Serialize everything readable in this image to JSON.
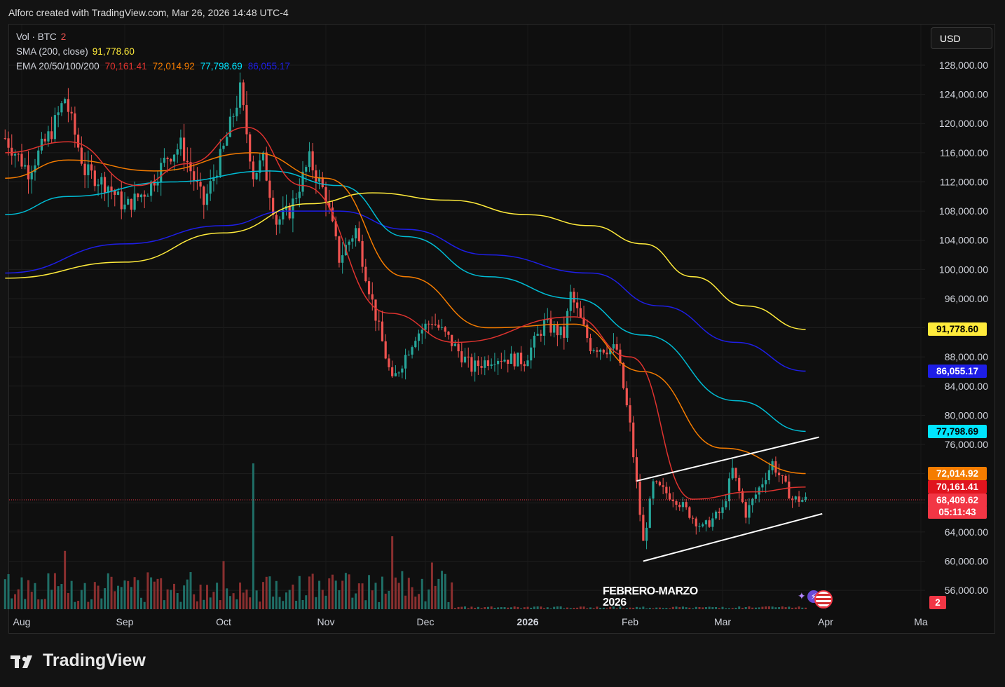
{
  "header": {
    "title": "Alforc created with TradingView.com, Mar 26, 2026 14:48 UTC-4"
  },
  "legend": {
    "vol_label": "Vol · BTC",
    "vol_value": "2",
    "sma_label": "SMA (200, close)",
    "sma_value": "91,778.60",
    "ema_label": "EMA 20/50/100/200",
    "ema20_value": "70,161.41",
    "ema50_value": "72,014.92",
    "ema100_value": "77,798.69",
    "ema200_value": "86,055.17"
  },
  "currency_button": "USD",
  "annotation": {
    "line1": "FEBRERO-MARZO",
    "line2": "2026"
  },
  "brand": "TradingView",
  "colors": {
    "up": "#26a69a",
    "down": "#ef5350",
    "ema20": "#e0332f",
    "ema50": "#f57c00",
    "ema100": "#00bcd4",
    "ema200": "#1e1ee6",
    "sma200": "#ffeb3b",
    "channel": "#ffffff"
  },
  "price_tags": [
    {
      "label": "91,778.60",
      "value": 91778.6,
      "bg": "#ffeb3b",
      "fg": "#000000"
    },
    {
      "label": "86,055.17",
      "value": 86055.17,
      "bg": "#1e1ee6",
      "fg": "#ffffff"
    },
    {
      "label": "77,798.69",
      "value": 77798.69,
      "bg": "#00e5ff",
      "fg": "#000000"
    },
    {
      "label": "72,014.92",
      "value": 72014.92,
      "bg": "#f57c00",
      "fg": "#ffffff"
    },
    {
      "label": "70,161.41",
      "value": 70161.41,
      "bg": "#e0141e",
      "fg": "#ffffff"
    },
    {
      "label": "68,409.62",
      "value": 68409.62,
      "bg": "#f23645",
      "fg": "#ffffff"
    },
    {
      "label": "05:11:43",
      "value": 66700,
      "bg": "#f23645",
      "fg": "#ffffff"
    }
  ],
  "volume_tag": {
    "label": "2",
    "bg": "#f23645",
    "fg": "#ffffff"
  },
  "chart_data": {
    "type": "candlestick",
    "symbol": "BTC",
    "currency": "USD",
    "y_ticks": [
      56000,
      60000,
      64000,
      68000,
      72000,
      76000,
      80000,
      84000,
      88000,
      92000,
      96000,
      100000,
      104000,
      108000,
      112000,
      116000,
      120000,
      124000,
      128000
    ],
    "y_tick_labels": [
      "56,000.00",
      "60,000.00",
      "64,000.00",
      "",
      "",
      "76,000.00",
      "80,000.00",
      "84,000.00",
      "88,000.00",
      "",
      "96,000.00",
      "100,000.00",
      "104,000.00",
      "108,000.00",
      "112,000.00",
      "116,000.00",
      "120,000.00",
      "124,000.00",
      "128,000.00"
    ],
    "x_ticks": [
      {
        "label": "Aug",
        "date": "2025-08-01"
      },
      {
        "label": "Sep",
        "date": "2025-09-01"
      },
      {
        "label": "Oct",
        "date": "2025-10-01"
      },
      {
        "label": "Nov",
        "date": "2025-11-01"
      },
      {
        "label": "Dec",
        "date": "2025-12-01"
      },
      {
        "label": "2026",
        "date": "2026-01-01"
      },
      {
        "label": "Feb",
        "date": "2026-02-01"
      },
      {
        "label": "Mar",
        "date": "2026-03-01"
      },
      {
        "label": "Apr",
        "date": "2026-04-01"
      },
      {
        "label": "Ma",
        "date": "2026-05-01"
      }
    ],
    "close_series": [
      {
        "date": "2025-07-27",
        "close": 118000
      },
      {
        "date": "2025-08-03",
        "close": 113500
      },
      {
        "date": "2025-08-10",
        "close": 119000
      },
      {
        "date": "2025-08-14",
        "close": 123500
      },
      {
        "date": "2025-08-20",
        "close": 113500
      },
      {
        "date": "2025-08-27",
        "close": 111500
      },
      {
        "date": "2025-09-01",
        "close": 108500
      },
      {
        "date": "2025-09-08",
        "close": 111000
      },
      {
        "date": "2025-09-14",
        "close": 115500
      },
      {
        "date": "2025-09-18",
        "close": 117000
      },
      {
        "date": "2025-09-25",
        "close": 109000
      },
      {
        "date": "2025-10-01",
        "close": 116500
      },
      {
        "date": "2025-10-06",
        "close": 124500
      },
      {
        "date": "2025-10-10",
        "close": 113000
      },
      {
        "date": "2025-10-13",
        "close": 115000
      },
      {
        "date": "2025-10-17",
        "close": 106500
      },
      {
        "date": "2025-10-21",
        "close": 108000
      },
      {
        "date": "2025-10-27",
        "close": 115000
      },
      {
        "date": "2025-11-01",
        "close": 110000
      },
      {
        "date": "2025-11-05",
        "close": 101500
      },
      {
        "date": "2025-11-10",
        "close": 105500
      },
      {
        "date": "2025-11-15",
        "close": 95500
      },
      {
        "date": "2025-11-21",
        "close": 84500
      },
      {
        "date": "2025-11-28",
        "close": 91000
      },
      {
        "date": "2025-12-03",
        "close": 93000
      },
      {
        "date": "2025-12-08",
        "close": 90500
      },
      {
        "date": "2025-12-15",
        "close": 86500
      },
      {
        "date": "2025-12-22",
        "close": 88000
      },
      {
        "date": "2025-12-31",
        "close": 87500
      },
      {
        "date": "2026-01-06",
        "close": 92500
      },
      {
        "date": "2026-01-12",
        "close": 91000
      },
      {
        "date": "2026-01-14",
        "close": 96500
      },
      {
        "date": "2026-01-20",
        "close": 89500
      },
      {
        "date": "2026-01-28",
        "close": 89000
      },
      {
        "date": "2026-02-01",
        "close": 78500
      },
      {
        "date": "2026-02-05",
        "close": 62500
      },
      {
        "date": "2026-02-08",
        "close": 70500
      },
      {
        "date": "2026-02-15",
        "close": 68500
      },
      {
        "date": "2026-02-23",
        "close": 64500
      },
      {
        "date": "2026-03-01",
        "close": 67000
      },
      {
        "date": "2026-03-04",
        "close": 72500
      },
      {
        "date": "2026-03-08",
        "close": 66500
      },
      {
        "date": "2026-03-16",
        "close": 73500
      },
      {
        "date": "2026-03-22",
        "close": 68500
      },
      {
        "date": "2026-03-26",
        "close": 68409.62
      }
    ],
    "sma200": [
      {
        "date": "2025-07-27",
        "value": 98800
      },
      {
        "date": "2025-09-01",
        "value": 101000
      },
      {
        "date": "2025-10-01",
        "value": 105000
      },
      {
        "date": "2025-10-27",
        "value": 109000
      },
      {
        "date": "2025-11-15",
        "value": 110500
      },
      {
        "date": "2025-12-08",
        "value": 109500
      },
      {
        "date": "2026-01-01",
        "value": 107500
      },
      {
        "date": "2026-01-20",
        "value": 106000
      },
      {
        "date": "2026-02-05",
        "value": 103500
      },
      {
        "date": "2026-02-20",
        "value": 99000
      },
      {
        "date": "2026-03-08",
        "value": 95000
      },
      {
        "date": "2026-03-26",
        "value": 91778.6
      }
    ],
    "ema200": [
      {
        "date": "2025-07-27",
        "value": 99500
      },
      {
        "date": "2025-09-01",
        "value": 103500
      },
      {
        "date": "2025-10-01",
        "value": 106000
      },
      {
        "date": "2025-10-20",
        "value": 108000
      },
      {
        "date": "2025-11-05",
        "value": 108000
      },
      {
        "date": "2025-11-25",
        "value": 105500
      },
      {
        "date": "2025-12-20",
        "value": 102000
      },
      {
        "date": "2026-01-20",
        "value": 99500
      },
      {
        "date": "2026-02-10",
        "value": 95000
      },
      {
        "date": "2026-03-05",
        "value": 90000
      },
      {
        "date": "2026-03-26",
        "value": 86055.17
      }
    ],
    "ema100": [
      {
        "date": "2025-07-27",
        "value": 107500
      },
      {
        "date": "2025-08-15",
        "value": 110000
      },
      {
        "date": "2025-09-15",
        "value": 112000
      },
      {
        "date": "2025-10-15",
        "value": 113500
      },
      {
        "date": "2025-11-05",
        "value": 111500
      },
      {
        "date": "2025-11-25",
        "value": 104500
      },
      {
        "date": "2025-12-20",
        "value": 99000
      },
      {
        "date": "2026-01-15",
        "value": 96000
      },
      {
        "date": "2026-02-05",
        "value": 91000
      },
      {
        "date": "2026-03-05",
        "value": 82000
      },
      {
        "date": "2026-03-26",
        "value": 77798.69
      }
    ],
    "ema50": [
      {
        "date": "2025-07-27",
        "value": 112500
      },
      {
        "date": "2025-08-15",
        "value": 115000
      },
      {
        "date": "2025-09-10",
        "value": 113500
      },
      {
        "date": "2025-10-10",
        "value": 116000
      },
      {
        "date": "2025-11-01",
        "value": 112500
      },
      {
        "date": "2025-11-25",
        "value": 99000
      },
      {
        "date": "2025-12-20",
        "value": 92000
      },
      {
        "date": "2026-01-15",
        "value": 92500
      },
      {
        "date": "2026-02-05",
        "value": 86000
      },
      {
        "date": "2026-03-01",
        "value": 75500
      },
      {
        "date": "2026-03-26",
        "value": 72014.92
      }
    ],
    "ema20": [
      {
        "date": "2025-07-27",
        "value": 116000
      },
      {
        "date": "2025-08-15",
        "value": 117500
      },
      {
        "date": "2025-09-05",
        "value": 111500
      },
      {
        "date": "2025-09-20",
        "value": 114500
      },
      {
        "date": "2025-10-08",
        "value": 119500
      },
      {
        "date": "2025-10-25",
        "value": 111500
      },
      {
        "date": "2025-11-20",
        "value": 94000
      },
      {
        "date": "2025-12-10",
        "value": 90000
      },
      {
        "date": "2026-01-15",
        "value": 93500
      },
      {
        "date": "2026-02-01",
        "value": 88000
      },
      {
        "date": "2026-02-20",
        "value": 68500
      },
      {
        "date": "2026-03-10",
        "value": 69500
      },
      {
        "date": "2026-03-26",
        "value": 70161.41
      }
    ],
    "channel": {
      "upper": [
        {
          "date": "2026-02-03",
          "value": 71000
        },
        {
          "date": "2026-03-30",
          "value": 77000
        }
      ],
      "lower": [
        {
          "date": "2026-02-05",
          "value": 60000
        },
        {
          "date": "2026-03-31",
          "value": 66500
        }
      ]
    },
    "volume_spikes": [
      {
        "date": "2025-10-10",
        "relative": 1.0
      },
      {
        "date": "2025-11-21",
        "relative": 0.5
      },
      {
        "date": "2025-08-14",
        "relative": 0.4
      },
      {
        "date": "2025-10-01",
        "relative": 0.33
      },
      {
        "date": "2025-12-03",
        "relative": 0.32
      }
    ],
    "last_price": 68409.62,
    "countdown": "05:11:43"
  }
}
